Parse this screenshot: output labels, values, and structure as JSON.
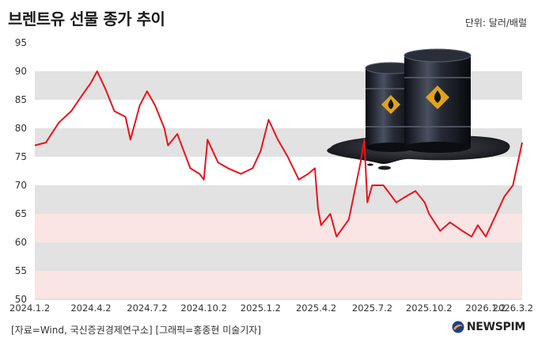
{
  "title": "브렌트유 선물 종가 추이",
  "unit": "단위: 달러/배럴",
  "source": "[자료=Wind, 국신증권경제연구소] [그래픽=홍종현 미술기자]",
  "brand": "NEWSPIM",
  "colors": {
    "line": "#e8141c",
    "band_gray": "#e2e2e2",
    "band_pink": "#fbe4e4",
    "band_white": "#ffffff"
  },
  "icons": [
    "oil-barrels-illustration",
    "newspim-logo-icon"
  ],
  "chart_data": {
    "type": "line",
    "xlabel": "",
    "ylabel": "",
    "ylim": [
      50,
      95
    ],
    "yticks": [
      50,
      55,
      60,
      65,
      70,
      75,
      80,
      85,
      90,
      95
    ],
    "xticks": [
      "2024.1.2",
      "2024.4.2",
      "2024.7.2",
      "2024.10.2",
      "2025.1.2",
      "2025.4.2",
      "2025.7.2",
      "2025.10.2",
      "2026.1.2",
      "2026.3.2"
    ],
    "grid": "horizontal bands",
    "series": [
      {
        "name": "",
        "x": [
          "2024.1.2",
          "2024.1.20",
          "2024.2.10",
          "2024.3.1",
          "2024.3.20",
          "2024.4.2",
          "2024.4.12",
          "2024.4.25",
          "2024.5.10",
          "2024.5.28",
          "2024.6.5",
          "2024.6.20",
          "2024.7.2",
          "2024.7.15",
          "2024.7.30",
          "2024.8.5",
          "2024.8.20",
          "2024.9.10",
          "2024.9.25",
          "2024.10.2",
          "2024.10.8",
          "2024.10.25",
          "2024.11.10",
          "2024.12.1",
          "2024.12.20",
          "2025.1.2",
          "2025.1.15",
          "2025.1.30",
          "2025.2.15",
          "2025.3.5",
          "2025.3.20",
          "2025.3.31",
          "2025.4.5",
          "2025.4.10",
          "2025.4.25",
          "2025.5.5",
          "2025.5.25",
          "2025.6.13",
          "2025.6.19",
          "2025.6.24",
          "2025.7.2",
          "2025.7.20",
          "2025.8.10",
          "2025.8.25",
          "2025.9.10",
          "2025.9.25",
          "2025.10.2",
          "2025.10.20",
          "2025.11.5",
          "2025.11.25",
          "2025.12.10",
          "2025.12.20",
          "2026.1.2",
          "2026.1.15",
          "2026.2.1",
          "2026.2.15",
          "2026.3.2"
        ],
        "values": [
          77,
          77.5,
          81,
          83,
          86,
          88,
          90,
          87,
          83,
          82,
          78,
          84,
          86.5,
          84,
          80,
          77,
          79,
          73,
          72,
          71,
          78,
          74,
          73,
          72,
          73,
          76,
          81.5,
          78,
          75,
          71,
          72,
          73,
          66,
          63,
          65,
          61,
          64,
          74,
          78,
          67,
          70,
          70,
          67,
          68,
          69,
          67,
          65,
          62,
          63.5,
          62,
          61,
          63,
          61,
          64,
          68,
          70,
          77.5
        ]
      }
    ]
  }
}
